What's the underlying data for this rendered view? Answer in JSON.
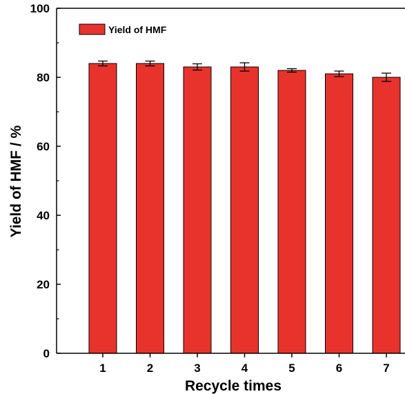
{
  "chart_data": {
    "type": "bar",
    "categories": [
      "1",
      "2",
      "3",
      "4",
      "5",
      "6",
      "7"
    ],
    "series": [
      {
        "name": "Yield of HMF",
        "values": [
          84,
          84,
          83,
          83,
          82,
          81,
          80
        ],
        "errors": [
          0.7,
          0.7,
          0.9,
          1.2,
          0.5,
          0.8,
          1.2
        ],
        "color": "#e8332d"
      }
    ],
    "xlabel": "Recycle times",
    "ylabel": "Yield of HMF / %",
    "ylim": [
      0,
      100
    ],
    "yticks": [
      0,
      20,
      40,
      60,
      80,
      100
    ],
    "grid": false,
    "legend": "top-left"
  }
}
